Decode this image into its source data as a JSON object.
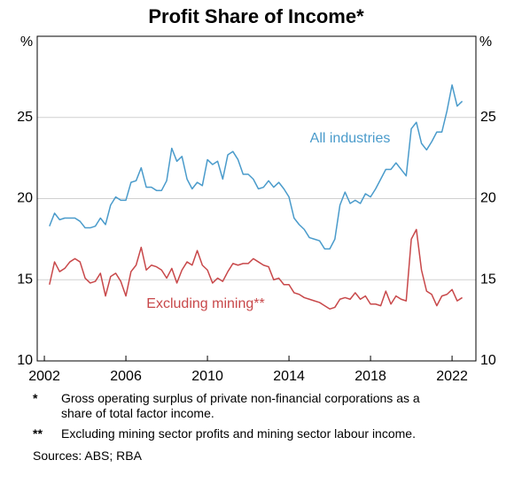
{
  "chart_data": {
    "type": "line",
    "title": "Profit Share of Income*",
    "y_unit": "%",
    "xlim": [
      2001.65,
      2023.17
    ],
    "xticks": [
      2002,
      2006,
      2010,
      2014,
      2018,
      2022
    ],
    "ylim": [
      10,
      30
    ],
    "yticks": [
      10,
      15,
      20,
      25
    ],
    "grid": true,
    "x": [
      2002.25,
      2002.5,
      2002.75,
      2003,
      2003.25,
      2003.5,
      2003.75,
      2004,
      2004.25,
      2004.5,
      2004.75,
      2005,
      2005.25,
      2005.5,
      2005.75,
      2006,
      2006.25,
      2006.5,
      2006.75,
      2007,
      2007.25,
      2007.5,
      2007.75,
      2008,
      2008.25,
      2008.5,
      2008.75,
      2009,
      2009.25,
      2009.5,
      2009.75,
      2010,
      2010.25,
      2010.5,
      2010.75,
      2011,
      2011.25,
      2011.5,
      2011.75,
      2012,
      2012.25,
      2012.5,
      2012.75,
      2013,
      2013.25,
      2013.5,
      2013.75,
      2014,
      2014.25,
      2014.5,
      2014.75,
      2015,
      2015.25,
      2015.5,
      2015.75,
      2016,
      2016.25,
      2016.5,
      2016.75,
      2017,
      2017.25,
      2017.5,
      2017.75,
      2018,
      2018.25,
      2018.5,
      2018.75,
      2019,
      2019.25,
      2019.5,
      2019.75,
      2020,
      2020.25,
      2020.5,
      2020.75,
      2021,
      2021.25,
      2021.5,
      2021.75,
      2022,
      2022.25,
      2022.5
    ],
    "series": [
      {
        "name": "All industries",
        "color": "#4a9bcb",
        "values": [
          18.3,
          19.1,
          18.7,
          18.8,
          18.8,
          18.8,
          18.6,
          18.2,
          18.2,
          18.3,
          18.8,
          18.4,
          19.6,
          20.1,
          19.9,
          19.9,
          21.0,
          21.1,
          21.9,
          20.7,
          20.7,
          20.5,
          20.5,
          21.1,
          23.1,
          22.3,
          22.6,
          21.2,
          20.6,
          21.0,
          20.8,
          22.4,
          22.1,
          22.3,
          21.2,
          22.7,
          22.9,
          22.4,
          21.5,
          21.5,
          21.2,
          20.6,
          20.7,
          21.1,
          20.7,
          21.0,
          20.6,
          20.1,
          18.8,
          18.4,
          18.1,
          17.6,
          17.5,
          17.4,
          16.9,
          16.9,
          17.5,
          19.6,
          20.4,
          19.7,
          19.9,
          19.7,
          20.3,
          20.1,
          20.6,
          21.2,
          21.8,
          21.8,
          22.2,
          21.8,
          21.4,
          24.3,
          24.7,
          23.4,
          23.0,
          23.5,
          24.1,
          24.1,
          25.4,
          27.0,
          25.7,
          26.0
        ]
      },
      {
        "name": "Excluding mining**",
        "color": "#c8484a",
        "values": [
          14.7,
          16.1,
          15.5,
          15.7,
          16.1,
          16.3,
          16.1,
          15.1,
          14.8,
          14.9,
          15.4,
          14.0,
          15.2,
          15.4,
          14.9,
          14.0,
          15.5,
          15.9,
          17.0,
          15.6,
          15.9,
          15.8,
          15.6,
          15.1,
          15.7,
          14.8,
          15.6,
          16.1,
          15.9,
          16.8,
          15.9,
          15.6,
          14.8,
          15.1,
          14.9,
          15.5,
          16.0,
          15.9,
          16.0,
          16.0,
          16.3,
          16.1,
          15.9,
          15.8,
          15.0,
          15.1,
          14.7,
          14.7,
          14.2,
          14.1,
          13.9,
          13.8,
          13.7,
          13.6,
          13.4,
          13.2,
          13.3,
          13.8,
          13.9,
          13.8,
          14.2,
          13.8,
          14.0,
          13.5,
          13.5,
          13.4,
          14.3,
          13.5,
          14.0,
          13.8,
          13.7,
          17.5,
          18.1,
          15.6,
          14.3,
          14.1,
          13.4,
          14.0,
          14.1,
          14.4,
          13.7,
          13.9
        ]
      }
    ],
    "notes": [
      {
        "symbol": "*",
        "text": "Gross operating surplus of private non-financial corporations as a share of total factor income."
      },
      {
        "symbol": "**",
        "text": "Excluding mining sector profits and mining sector labour income."
      }
    ],
    "sources": "Sources: ABS; RBA"
  }
}
